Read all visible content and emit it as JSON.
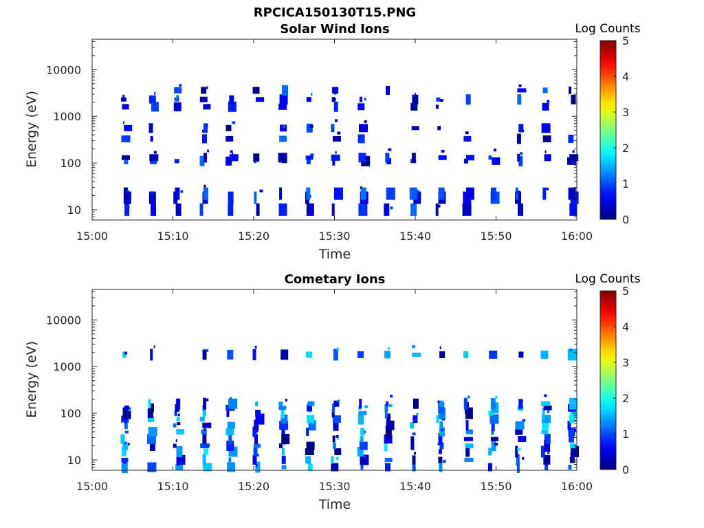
{
  "figure_title": "RPCICA150130T15.PNG",
  "colorbar_colors": [
    "#00008f",
    "#0000ff",
    "#0080ff",
    "#00ffff",
    "#80ff80",
    "#ffff00",
    "#ff8000",
    "#ff0000",
    "#800000"
  ],
  "chart_data": [
    {
      "type": "heatmap",
      "title": "Solar Wind Ions",
      "xlabel": "Time",
      "ylabel": "Energy (eV)",
      "x_range": [
        "15:00",
        "16:00"
      ],
      "x_ticks": [
        "15:00",
        "15:10",
        "15:20",
        "15:30",
        "15:40",
        "15:50",
        "16:00"
      ],
      "y_scale": "log",
      "y_range": [
        6,
        45000
      ],
      "y_ticks": [
        "10",
        "100",
        "1000",
        "10000"
      ],
      "colorbar": {
        "label": "Log Counts",
        "range": [
          0,
          5
        ],
        "ticks": [
          "0",
          "1",
          "2",
          "3",
          "4",
          "5"
        ],
        "colormap": "jet"
      },
      "energy_bands_eV": [
        10,
        18,
        22,
        110,
        130,
        330,
        560,
        1600,
        2300,
        3600
      ],
      "scan_start_minutes": [
        3.5,
        6.8,
        10.0,
        13.3,
        16.5,
        19.8,
        23.0,
        26.3,
        29.5,
        32.8,
        36.0,
        39.3,
        42.5,
        45.8,
        49.0,
        52.3,
        55.5,
        58.8
      ],
      "value_range_log_counts": [
        0,
        1.2
      ]
    },
    {
      "type": "heatmap",
      "title": "Cometary Ions",
      "xlabel": "Time",
      "ylabel": "Energy (eV)",
      "x_range": [
        "15:00",
        "16:00"
      ],
      "x_ticks": [
        "15:00",
        "15:10",
        "15:20",
        "15:30",
        "15:40",
        "15:50",
        "16:00"
      ],
      "y_scale": "log",
      "y_range": [
        6,
        45000
      ],
      "y_ticks": [
        "10",
        "100",
        "1000",
        "10000"
      ],
      "colorbar": {
        "label": "Log Counts",
        "range": [
          0,
          5
        ],
        "ticks": [
          "0",
          "1",
          "2",
          "3",
          "4",
          "5"
        ],
        "colormap": "jet"
      },
      "energy_bands_eV": [
        7,
        10,
        15,
        20,
        28,
        40,
        55,
        75,
        100,
        130,
        160,
        1800
      ],
      "scan_start_minutes": [
        3.5,
        6.8,
        10.0,
        13.3,
        16.5,
        19.8,
        23.0,
        26.3,
        29.5,
        32.8,
        36.0,
        39.3,
        42.5,
        45.8,
        49.0,
        52.3,
        55.5,
        58.8
      ],
      "value_range_log_counts": [
        0,
        1.8
      ]
    }
  ]
}
